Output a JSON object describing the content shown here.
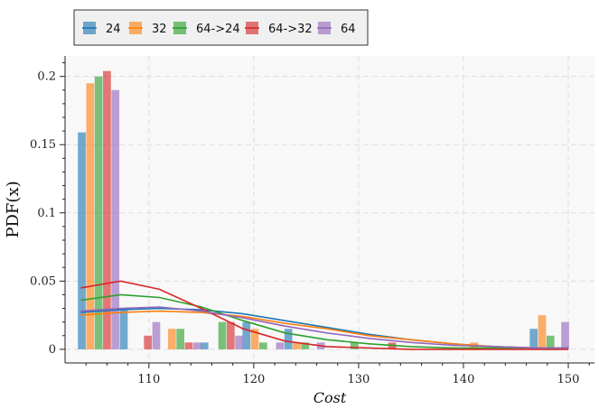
{
  "chart_data": {
    "type": "bar",
    "xlabel": "Cost",
    "ylabel": "PDF(x)",
    "xlim": [
      102,
      152.5
    ],
    "ylim": [
      -0.01,
      0.215
    ],
    "xticks": [
      110,
      120,
      130,
      140,
      150
    ],
    "yticks": [
      0,
      0.05,
      0.1,
      0.15,
      0.2
    ],
    "ytick_labels": [
      "0",
      "0.05",
      "0.1",
      "0.15",
      "0.2"
    ],
    "grid": true,
    "legend_position": "top-left-outside",
    "bin_centers": [
      105.2,
      112.8,
      116.8,
      121.0,
      124.5,
      133.2,
      135.0,
      141.0,
      147.6,
      149.0
    ],
    "bar_width": 0.75,
    "series": [
      {
        "name": "24",
        "color": "#1f77b4",
        "bars": [
          [
            103.6,
            0.159
          ],
          [
            107.6,
            0.03
          ],
          [
            115.3,
            0.005
          ],
          [
            119.3,
            0.02
          ],
          [
            123.3,
            0.015
          ],
          [
            146.7,
            0.015
          ]
        ],
        "curve": [
          [
            103.5,
            0.027
          ],
          [
            107.3,
            0.029
          ],
          [
            111.0,
            0.03
          ],
          [
            115.0,
            0.029
          ],
          [
            119.0,
            0.026
          ],
          [
            123.0,
            0.021
          ],
          [
            127.0,
            0.016
          ],
          [
            131.0,
            0.011
          ],
          [
            135.0,
            0.007
          ],
          [
            139.0,
            0.004
          ],
          [
            143.0,
            0.002
          ],
          [
            147.0,
            0.001
          ],
          [
            150.0,
            0.001
          ]
        ]
      },
      {
        "name": "32",
        "color": "#ff7f0e",
        "bars": [
          [
            104.4,
            0.195
          ],
          [
            112.2,
            0.015
          ],
          [
            118.5,
            0.0
          ],
          [
            120.1,
            0.015
          ],
          [
            124.1,
            0.005
          ],
          [
            141.0,
            0.005
          ],
          [
            147.5,
            0.025
          ]
        ],
        "curve": [
          [
            103.5,
            0.025
          ],
          [
            107.3,
            0.027
          ],
          [
            111.0,
            0.028
          ],
          [
            115.0,
            0.027
          ],
          [
            119.0,
            0.024
          ],
          [
            123.0,
            0.019
          ],
          [
            127.0,
            0.015
          ],
          [
            131.0,
            0.01
          ],
          [
            135.0,
            0.007
          ],
          [
            139.0,
            0.004
          ],
          [
            143.0,
            0.002
          ],
          [
            147.0,
            0.001
          ],
          [
            150.0,
            0.001
          ]
        ]
      },
      {
        "name": "64->24",
        "color": "#2ca02c",
        "bars": [
          [
            105.2,
            0.2
          ],
          [
            113.0,
            0.015
          ],
          [
            117.0,
            0.02
          ],
          [
            120.9,
            0.005
          ],
          [
            124.9,
            0.005
          ],
          [
            129.6,
            0.005
          ],
          [
            148.3,
            0.01
          ]
        ],
        "curve": [
          [
            103.5,
            0.036
          ],
          [
            107.3,
            0.04
          ],
          [
            111.0,
            0.038
          ],
          [
            115.0,
            0.031
          ],
          [
            119.0,
            0.021
          ],
          [
            123.0,
            0.012
          ],
          [
            127.0,
            0.007
          ],
          [
            131.0,
            0.004
          ],
          [
            135.0,
            0.002
          ],
          [
            139.0,
            0.001
          ],
          [
            143.0,
            0.001
          ],
          [
            147.0,
            0.001
          ],
          [
            150.0,
            0.001
          ]
        ]
      },
      {
        "name": "64->32",
        "color": "#d62728",
        "bars": [
          [
            106.0,
            0.204
          ],
          [
            109.9,
            0.01
          ],
          [
            113.8,
            0.005
          ],
          [
            117.8,
            0.02
          ],
          [
            133.2,
            0.005
          ]
        ],
        "curve": [
          [
            103.5,
            0.045
          ],
          [
            107.3,
            0.05
          ],
          [
            111.0,
            0.044
          ],
          [
            115.0,
            0.03
          ],
          [
            119.0,
            0.015
          ],
          [
            123.0,
            0.006
          ],
          [
            127.0,
            0.002
          ],
          [
            131.0,
            0.001
          ],
          [
            135.0,
            0.0
          ],
          [
            139.0,
            0.0
          ],
          [
            143.0,
            0.0
          ],
          [
            147.0,
            0.0
          ],
          [
            150.0,
            0.0
          ]
        ]
      },
      {
        "name": "64",
        "color": "#9467bd",
        "bars": [
          [
            106.8,
            0.19
          ],
          [
            110.7,
            0.02
          ],
          [
            114.6,
            0.005
          ],
          [
            118.6,
            0.01
          ],
          [
            122.5,
            0.005
          ],
          [
            126.4,
            0.005
          ],
          [
            149.7,
            0.02
          ]
        ],
        "curve": [
          [
            103.5,
            0.028
          ],
          [
            107.3,
            0.03
          ],
          [
            111.0,
            0.031
          ],
          [
            115.0,
            0.028
          ],
          [
            119.0,
            0.023
          ],
          [
            123.0,
            0.017
          ],
          [
            127.0,
            0.012
          ],
          [
            131.0,
            0.008
          ],
          [
            135.0,
            0.005
          ],
          [
            139.0,
            0.003
          ],
          [
            143.0,
            0.002
          ],
          [
            147.0,
            0.001
          ],
          [
            150.0,
            0.001
          ]
        ]
      }
    ]
  }
}
